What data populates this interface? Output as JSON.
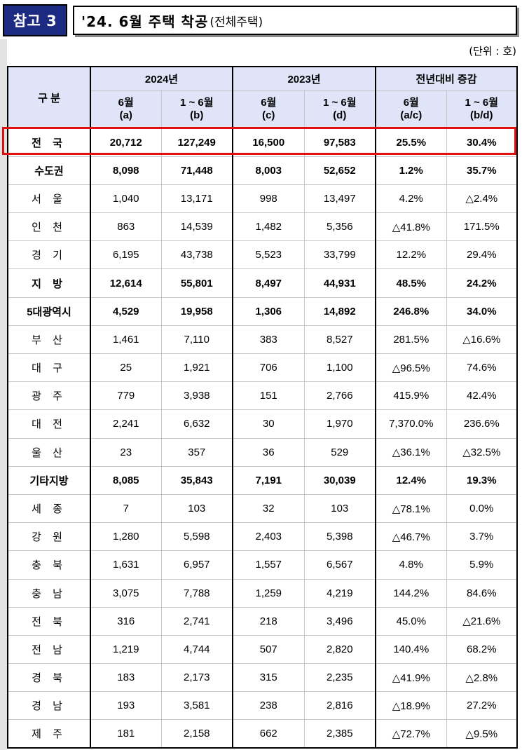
{
  "header": {
    "badge": "참고 3",
    "title_main": "'24. 6월 주택 착공",
    "title_sub": "(전체주택)",
    "unit": "(단위 : 호)"
  },
  "table": {
    "category_header": "구  분",
    "groups": [
      "2024년",
      "2023년",
      "전년대비 증감"
    ],
    "subheaders": [
      {
        "line1": "6월",
        "line2": "(a)"
      },
      {
        "line1": "1 ~ 6월",
        "line2": "(b)"
      },
      {
        "line1": "6월",
        "line2": "(c)"
      },
      {
        "line1": "1 ~ 6월",
        "line2": "(d)"
      },
      {
        "line1": "6월",
        "line2": "(a/c)"
      },
      {
        "line1": "1 ~ 6월",
        "line2": "(b/d)"
      }
    ],
    "rows": [
      {
        "label": "전 국",
        "values": [
          "20,712",
          "127,249",
          "16,500",
          "97,583",
          "25.5%",
          "30.4%"
        ],
        "bold": true,
        "highlighted": true
      },
      {
        "label": "수도권",
        "values": [
          "8,098",
          "71,448",
          "8,003",
          "52,652",
          "1.2%",
          "35.7%"
        ],
        "bold": true
      },
      {
        "label": "서 울",
        "values": [
          "1,040",
          "13,171",
          "998",
          "13,497",
          "4.2%",
          "△2.4%"
        ]
      },
      {
        "label": "인 천",
        "values": [
          "863",
          "14,539",
          "1,482",
          "5,356",
          "△41.8%",
          "171.5%"
        ]
      },
      {
        "label": "경 기",
        "values": [
          "6,195",
          "43,738",
          "5,523",
          "33,799",
          "12.2%",
          "29.4%"
        ]
      },
      {
        "label": "지  방",
        "values": [
          "12,614",
          "55,801",
          "8,497",
          "44,931",
          "48.5%",
          "24.2%"
        ],
        "bold": true
      },
      {
        "label": "5대광역시",
        "values": [
          "4,529",
          "19,958",
          "1,306",
          "14,892",
          "246.8%",
          "34.0%"
        ],
        "bold": true
      },
      {
        "label": "부 산",
        "values": [
          "1,461",
          "7,110",
          "383",
          "8,527",
          "281.5%",
          "△16.6%"
        ]
      },
      {
        "label": "대 구",
        "values": [
          "25",
          "1,921",
          "706",
          "1,100",
          "△96.5%",
          "74.6%"
        ]
      },
      {
        "label": "광 주",
        "values": [
          "779",
          "3,938",
          "151",
          "2,766",
          "415.9%",
          "42.4%"
        ]
      },
      {
        "label": "대 전",
        "values": [
          "2,241",
          "6,632",
          "30",
          "1,970",
          "7,370.0%",
          "236.6%"
        ]
      },
      {
        "label": "울 산",
        "values": [
          "23",
          "357",
          "36",
          "529",
          "△36.1%",
          "△32.5%"
        ]
      },
      {
        "label": "기타지방",
        "values": [
          "8,085",
          "35,843",
          "7,191",
          "30,039",
          "12.4%",
          "19.3%"
        ],
        "bold": true
      },
      {
        "label": "세 종",
        "values": [
          "7",
          "103",
          "32",
          "103",
          "△78.1%",
          "0.0%"
        ]
      },
      {
        "label": "강 원",
        "values": [
          "1,280",
          "5,598",
          "2,403",
          "5,398",
          "△46.7%",
          "3.7%"
        ]
      },
      {
        "label": "충 북",
        "values": [
          "1,631",
          "6,957",
          "1,557",
          "6,567",
          "4.8%",
          "5.9%"
        ]
      },
      {
        "label": "충 남",
        "values": [
          "3,075",
          "7,788",
          "1,259",
          "4,219",
          "144.2%",
          "84.6%"
        ]
      },
      {
        "label": "전 북",
        "values": [
          "316",
          "2,741",
          "218",
          "3,496",
          "45.0%",
          "△21.6%"
        ]
      },
      {
        "label": "전 남",
        "values": [
          "1,219",
          "4,744",
          "507",
          "2,820",
          "140.4%",
          "68.2%"
        ]
      },
      {
        "label": "경 북",
        "values": [
          "183",
          "2,173",
          "315",
          "2,235",
          "△41.9%",
          "△2.8%"
        ]
      },
      {
        "label": "경 남",
        "values": [
          "193",
          "3,581",
          "238",
          "2,816",
          "△18.9%",
          "27.2%"
        ]
      },
      {
        "label": "제 주",
        "values": [
          "181",
          "2,158",
          "662",
          "2,385",
          "△72.7%",
          "△9.5%"
        ]
      }
    ]
  },
  "colors": {
    "badge_bg": "#1d2a82",
    "header_bg": "#dfe4f8",
    "highlight_border": "#e01010"
  }
}
